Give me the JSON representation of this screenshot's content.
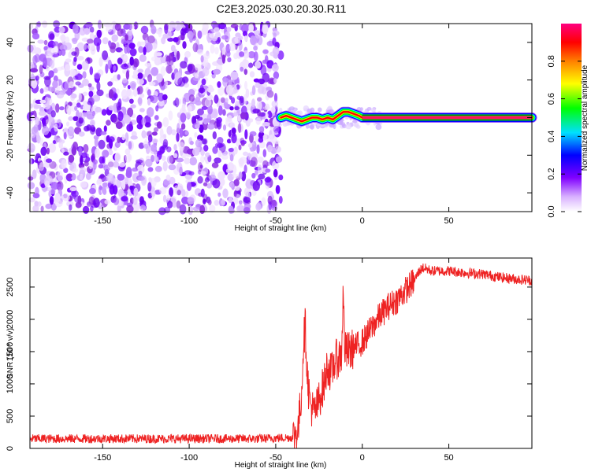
{
  "title": "C2E3.2025.030.20.30.R11",
  "chart_data": [
    {
      "type": "heatmap",
      "xlabel": "Height of straight line (km)",
      "ylabel": "Frequency (Hz)",
      "xlim": [
        -192,
        98
      ],
      "ylim": [
        -50,
        50
      ],
      "xticks": [
        -150,
        -100,
        -50,
        0,
        50
      ],
      "yticks": [
        -40,
        -20,
        0,
        20,
        40
      ],
      "colorbar": {
        "label": "Normalized spectral amplitude",
        "range": [
          0,
          1
        ],
        "ticks": [
          0.0,
          0.2,
          0.4,
          0.6,
          0.8
        ],
        "colormap": [
          "#ffffff",
          "#8000ff",
          "#0000ff",
          "#00ffff",
          "#00ff00",
          "#ffff00",
          "#ff8000",
          "#ff0000",
          "#ff0080"
        ]
      },
      "noise_region": {
        "x_range": [
          -192,
          -47
        ],
        "level": "low (0.0-0.2)"
      },
      "signal_track": [
        {
          "x": -47,
          "f": 0
        },
        {
          "x": -44,
          "f": 1
        },
        {
          "x": -41,
          "f": 0
        },
        {
          "x": -38,
          "f": -1
        },
        {
          "x": -35,
          "f": -2
        },
        {
          "x": -32,
          "f": -1
        },
        {
          "x": -29,
          "f": 0
        },
        {
          "x": -26,
          "f": 0
        },
        {
          "x": -23,
          "f": -1
        },
        {
          "x": -20,
          "f": 0
        },
        {
          "x": -17,
          "f": -1
        },
        {
          "x": -14,
          "f": 1
        },
        {
          "x": -11,
          "f": 3
        },
        {
          "x": -8,
          "f": 3
        },
        {
          "x": -5,
          "f": 2
        },
        {
          "x": -2,
          "f": 1
        },
        {
          "x": 0,
          "f": 0
        },
        {
          "x": 98,
          "f": 0
        }
      ]
    },
    {
      "type": "line",
      "xlabel": "Height of straight line (km)",
      "ylabel": "SNR (10 * v/v)",
      "xlim": [
        -192,
        98
      ],
      "ylim": [
        0,
        2950
      ],
      "xticks": [
        -150,
        -100,
        -50,
        0,
        50
      ],
      "yticks": [
        0,
        500,
        1000,
        1500,
        2000,
        2500
      ],
      "color": "#ee2222",
      "series": [
        {
          "x": [
            -192,
            -150,
            -100,
            -60,
            -40,
            -37,
            -35,
            -34,
            -33,
            -32,
            -31,
            -30,
            -28,
            -26,
            -24,
            -22,
            -20,
            -18,
            -16,
            -14,
            -12,
            -11,
            -10,
            -8,
            -5,
            0,
            5,
            10,
            15,
            20,
            25,
            30,
            33,
            35,
            40,
            50,
            60,
            70,
            80,
            90,
            98
          ],
          "y": [
            150,
            150,
            150,
            150,
            170,
            300,
            900,
            1650,
            1900,
            1300,
            900,
            700,
            550,
            650,
            850,
            1000,
            1300,
            1150,
            1350,
            1400,
            1450,
            2400,
            1500,
            1500,
            1550,
            1650,
            1850,
            2050,
            2200,
            2300,
            2450,
            2600,
            2750,
            2800,
            2750,
            2750,
            2720,
            2700,
            2650,
            2620,
            2600
          ]
        }
      ]
    }
  ]
}
